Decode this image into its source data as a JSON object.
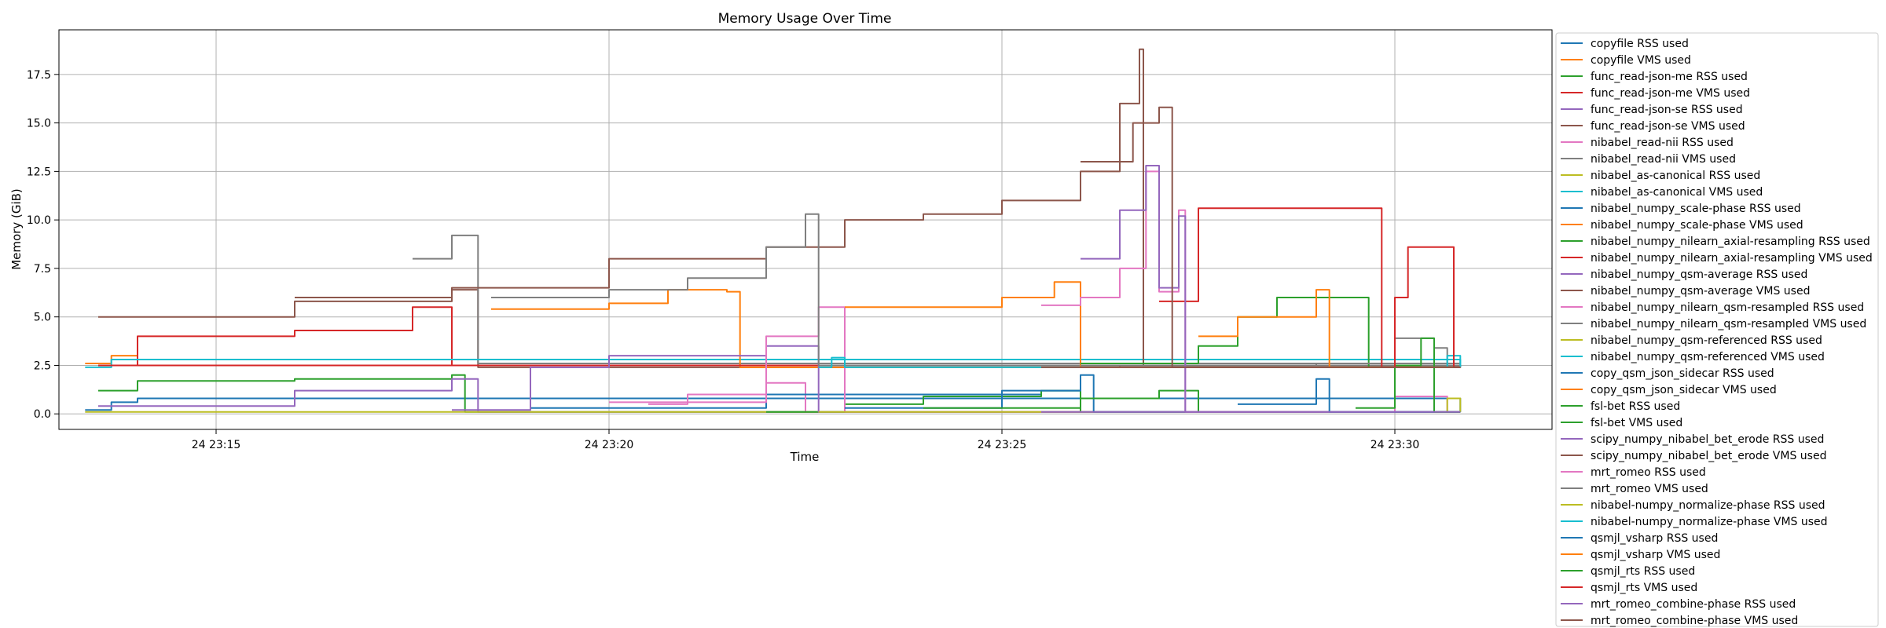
{
  "chart_data": {
    "type": "line",
    "title": "Memory Usage Over Time",
    "xlabel": "Time",
    "ylabel": "Memory (GiB)",
    "xlim": [
      "24 23:13:00",
      "24 23:32:00"
    ],
    "ylim": [
      -0.8,
      19.8
    ],
    "x_ticks": [
      "24 23:15",
      "24 23:20",
      "24 23:25",
      "24 23:30"
    ],
    "y_ticks": [
      "0.0",
      "2.5",
      "5.0",
      "7.5",
      "10.0",
      "12.5",
      "15.0",
      "17.5"
    ],
    "grid": true,
    "legend_position": "outside-right",
    "series": [
      {
        "name": "copyfile RSS used",
        "color": "#1f77b4",
        "points": [
          [
            "23:13:20",
            0.2
          ],
          [
            "23:13:40",
            0.6
          ],
          [
            "23:14:00",
            0.8
          ],
          [
            "23:30:50",
            0.1
          ]
        ]
      },
      {
        "name": "copyfile VMS used",
        "color": "#ff7f0e",
        "points": [
          [
            "23:13:20",
            2.6
          ],
          [
            "23:13:40",
            3.0
          ],
          [
            "23:14:00",
            2.5
          ],
          [
            "23:30:50",
            2.4
          ]
        ]
      },
      {
        "name": "func_read-json-me RSS used",
        "color": "#2ca02c",
        "points": [
          [
            "23:13:30",
            1.2
          ],
          [
            "23:14:00",
            1.7
          ],
          [
            "23:16:00",
            1.8
          ],
          [
            "23:18:00",
            2.0
          ],
          [
            "23:18:10",
            0.1
          ],
          [
            "23:30:50",
            0.1
          ]
        ]
      },
      {
        "name": "func_read-json-me VMS used",
        "color": "#d62728",
        "points": [
          [
            "23:13:30",
            2.5
          ],
          [
            "23:14:00",
            4.0
          ],
          [
            "23:16:00",
            4.3
          ],
          [
            "23:17:30",
            5.5
          ],
          [
            "23:18:00",
            2.5
          ],
          [
            "23:30:50",
            2.4
          ]
        ]
      },
      {
        "name": "func_read-json-se RSS used",
        "color": "#9467bd",
        "points": [
          [
            "23:13:30",
            0.4
          ],
          [
            "23:16:00",
            1.2
          ],
          [
            "23:18:00",
            1.8
          ],
          [
            "23:18:20",
            0.1
          ],
          [
            "23:30:50",
            0.1
          ]
        ]
      },
      {
        "name": "func_read-json-se VMS used",
        "color": "#8c564b",
        "points": [
          [
            "23:13:30",
            5.0
          ],
          [
            "23:16:00",
            5.8
          ],
          [
            "23:18:00",
            6.4
          ],
          [
            "23:18:20",
            2.4
          ],
          [
            "23:30:50",
            2.5
          ]
        ]
      },
      {
        "name": "nibabel_read-nii RSS used",
        "color": "#e377c2",
        "points": [
          [
            "23:20:30",
            0.5
          ],
          [
            "23:21:00",
            1.0
          ],
          [
            "23:22:00",
            1.6
          ],
          [
            "23:22:30",
            0.1
          ],
          [
            "23:30:50",
            0.1
          ]
        ]
      },
      {
        "name": "nibabel_read-nii VMS used",
        "color": "#7f7f7f",
        "points": [
          [
            "23:17:30",
            8.0
          ],
          [
            "23:18:00",
            9.2
          ],
          [
            "23:18:20",
            2.6
          ],
          [
            "23:30:50",
            2.6
          ]
        ]
      },
      {
        "name": "nibabel_as-canonical RSS used",
        "color": "#bcbd22",
        "points": [
          [
            "23:13:20",
            0.1
          ],
          [
            "23:30:50",
            0.1
          ]
        ]
      },
      {
        "name": "nibabel_as-canonical VMS used",
        "color": "#17becf",
        "points": [
          [
            "23:13:20",
            2.4
          ],
          [
            "23:13:40",
            2.8
          ],
          [
            "23:30:50",
            2.4
          ]
        ]
      },
      {
        "name": "nibabel_numpy_scale-phase RSS used",
        "color": "#1f77b4",
        "points": [
          [
            "23:19:00",
            0.3
          ],
          [
            "23:22:00",
            1.0
          ],
          [
            "23:25:30",
            1.2
          ],
          [
            "23:26:00",
            0.1
          ],
          [
            "23:30:50",
            0.1
          ]
        ]
      },
      {
        "name": "nibabel_numpy_scale-phase VMS used",
        "color": "#ff7f0e",
        "points": [
          [
            "23:18:30",
            5.4
          ],
          [
            "23:20:00",
            5.7
          ],
          [
            "23:20:45",
            6.4
          ],
          [
            "23:21:30",
            6.3
          ],
          [
            "23:21:40",
            2.4
          ],
          [
            "23:30:50",
            2.4
          ]
        ]
      },
      {
        "name": "nibabel_numpy_nilearn_axial-resampling RSS used",
        "color": "#2ca02c",
        "points": [
          [
            "23:22:00",
            0.1
          ],
          [
            "23:23:00",
            0.5
          ],
          [
            "23:24:00",
            0.9
          ],
          [
            "23:25:30",
            1.2
          ],
          [
            "23:26:00",
            0.1
          ],
          [
            "23:30:50",
            0.1
          ]
        ]
      },
      {
        "name": "nibabel_numpy_nilearn_axial-resampling VMS used",
        "color": "#d62728",
        "points": [
          [
            "23:13:30",
            2.5
          ],
          [
            "23:20:00",
            2.5
          ],
          [
            "23:26:30",
            2.4
          ],
          [
            "23:30:50",
            2.4
          ]
        ]
      },
      {
        "name": "nibabel_numpy_qsm-average RSS used",
        "color": "#9467bd",
        "points": [
          [
            "23:18:00",
            0.2
          ],
          [
            "23:19:00",
            2.4
          ],
          [
            "23:20:00",
            3.0
          ],
          [
            "23:22:00",
            3.5
          ],
          [
            "23:22:40",
            0.1
          ],
          [
            "23:30:50",
            0.1
          ]
        ]
      },
      {
        "name": "nibabel_numpy_qsm-average VMS used",
        "color": "#8c564b",
        "points": [
          [
            "23:16:00",
            6.0
          ],
          [
            "23:18:00",
            6.5
          ],
          [
            "23:20:00",
            8.0
          ],
          [
            "23:22:00",
            8.6
          ],
          [
            "23:23:00",
            10.0
          ],
          [
            "23:24:00",
            10.3
          ],
          [
            "23:25:00",
            11.0
          ],
          [
            "23:26:00",
            12.5
          ],
          [
            "23:26:30",
            16.0
          ],
          [
            "23:26:45",
            18.8
          ],
          [
            "23:26:48",
            2.5
          ],
          [
            "23:30:50",
            2.5
          ]
        ]
      },
      {
        "name": "nibabel_numpy_nilearn_qsm-resampled RSS used",
        "color": "#e377c2",
        "points": [
          [
            "23:20:00",
            0.6
          ],
          [
            "23:22:00",
            4.0
          ],
          [
            "23:22:40",
            5.5
          ],
          [
            "23:23:00",
            0.1
          ],
          [
            "23:30:50",
            0.1
          ]
        ]
      },
      {
        "name": "nibabel_numpy_nilearn_qsm-resampled VMS used",
        "color": "#7f7f7f",
        "points": [
          [
            "23:18:30",
            6.0
          ],
          [
            "23:20:00",
            6.4
          ],
          [
            "23:21:00",
            7.0
          ],
          [
            "23:22:00",
            8.6
          ],
          [
            "23:22:30",
            10.3
          ],
          [
            "23:22:40",
            2.5
          ],
          [
            "23:30:50",
            2.5
          ]
        ]
      },
      {
        "name": "nibabel_numpy_qsm-referenced RSS used",
        "color": "#bcbd22",
        "points": [
          [
            "23:22:40",
            0.1
          ],
          [
            "23:30:50",
            0.1
          ]
        ]
      },
      {
        "name": "nibabel_numpy_qsm-referenced VMS used",
        "color": "#17becf",
        "points": [
          [
            "23:22:40",
            2.4
          ],
          [
            "23:22:50",
            2.9
          ],
          [
            "23:23:00",
            2.4
          ],
          [
            "23:30:50",
            2.4
          ]
        ]
      },
      {
        "name": "copy_qsm_json_sidecar RSS used",
        "color": "#1f77b4",
        "points": [
          [
            "23:23:00",
            0.3
          ],
          [
            "23:25:00",
            1.2
          ],
          [
            "23:26:00",
            2.0
          ],
          [
            "23:26:10",
            0.1
          ],
          [
            "23:30:50",
            0.1
          ]
        ]
      },
      {
        "name": "copy_qsm_json_sidecar VMS used",
        "color": "#ff7f0e",
        "points": [
          [
            "23:23:00",
            5.5
          ],
          [
            "23:25:00",
            6.0
          ],
          [
            "23:25:40",
            6.8
          ],
          [
            "23:26:00",
            2.4
          ],
          [
            "23:30:50",
            2.4
          ]
        ]
      },
      {
        "name": "fsl-bet RSS used",
        "color": "#2ca02c",
        "points": [
          [
            "23:24:00",
            0.3
          ],
          [
            "23:26:00",
            0.8
          ],
          [
            "23:27:00",
            1.2
          ],
          [
            "23:27:30",
            0.1
          ],
          [
            "23:30:50",
            0.1
          ]
        ]
      },
      {
        "name": "fsl-bet VMS used",
        "color": "#2ca02c",
        "points": [
          [
            "23:26:00",
            2.6
          ],
          [
            "23:27:30",
            3.5
          ],
          [
            "23:28:00",
            5.0
          ],
          [
            "23:28:30",
            6.0
          ],
          [
            "23:29:30",
            6.0
          ],
          [
            "23:29:40",
            2.4
          ],
          [
            "23:30:50",
            2.4
          ]
        ]
      },
      {
        "name": "scipy_numpy_nibabel_bet_erode RSS used",
        "color": "#9467bd",
        "points": [
          [
            "23:25:30",
            0.1
          ],
          [
            "23:30:50",
            0.1
          ]
        ]
      },
      {
        "name": "scipy_numpy_nibabel_bet_erode VMS used",
        "color": "#8c564b",
        "points": [
          [
            "23:25:30",
            2.4
          ],
          [
            "23:30:50",
            2.4
          ]
        ]
      },
      {
        "name": "mrt_romeo RSS used",
        "color": "#e377c2",
        "points": [
          [
            "23:25:30",
            5.6
          ],
          [
            "23:26:00",
            6.0
          ],
          [
            "23:26:30",
            7.5
          ],
          [
            "23:26:50",
            12.5
          ],
          [
            "23:27:00",
            6.3
          ],
          [
            "23:27:15",
            10.5
          ],
          [
            "23:27:20",
            0.1
          ],
          [
            "23:29:40",
            0.1
          ],
          [
            "23:30:00",
            0.9
          ],
          [
            "23:30:30",
            0.9
          ],
          [
            "23:30:40",
            0.1
          ],
          [
            "23:30:50",
            0.1
          ]
        ]
      },
      {
        "name": "mrt_romeo VMS used",
        "color": "#7f7f7f",
        "points": [
          [
            "23:26:00",
            2.5
          ],
          [
            "23:29:00",
            2.6
          ],
          [
            "23:30:00",
            3.9
          ],
          [
            "23:30:30",
            3.4
          ],
          [
            "23:30:40",
            2.4
          ],
          [
            "23:30:50",
            2.4
          ]
        ]
      },
      {
        "name": "nibabel-numpy_normalize-phase RSS used",
        "color": "#bcbd22",
        "points": [
          [
            "23:30:30",
            0.1
          ],
          [
            "23:30:40",
            0.8
          ],
          [
            "23:30:50",
            0.1
          ]
        ]
      },
      {
        "name": "nibabel-numpy_normalize-phase VMS used",
        "color": "#17becf",
        "points": [
          [
            "23:30:30",
            2.4
          ],
          [
            "23:30:40",
            3.0
          ],
          [
            "23:30:50",
            2.4
          ]
        ]
      },
      {
        "name": "qsmjl_vsharp RSS used",
        "color": "#1f77b4",
        "points": [
          [
            "23:28:00",
            0.5
          ],
          [
            "23:29:00",
            1.8
          ],
          [
            "23:29:10",
            0.1
          ],
          [
            "23:30:50",
            0.1
          ]
        ]
      },
      {
        "name": "qsmjl_vsharp VMS used",
        "color": "#ff7f0e",
        "points": [
          [
            "23:27:30",
            4.0
          ],
          [
            "23:28:00",
            5.0
          ],
          [
            "23:29:00",
            6.4
          ],
          [
            "23:29:10",
            2.4
          ],
          [
            "23:30:50",
            2.4
          ]
        ]
      },
      {
        "name": "qsmjl_rts RSS used",
        "color": "#2ca02c",
        "points": [
          [
            "23:29:30",
            0.3
          ],
          [
            "23:30:00",
            2.5
          ],
          [
            "23:30:20",
            3.9
          ],
          [
            "23:30:30",
            0.1
          ],
          [
            "23:30:50",
            0.1
          ]
        ]
      },
      {
        "name": "qsmjl_rts VMS used",
        "color": "#d62728",
        "points": [
          [
            "23:27:00",
            5.8
          ],
          [
            "23:27:30",
            10.6
          ],
          [
            "23:29:40",
            10.6
          ],
          [
            "23:29:50",
            2.4
          ],
          [
            "23:30:00",
            6.0
          ],
          [
            "23:30:10",
            8.6
          ],
          [
            "23:30:40",
            8.6
          ],
          [
            "23:30:45",
            2.4
          ],
          [
            "23:30:50",
            2.4
          ]
        ]
      },
      {
        "name": "mrt_romeo_combine-phase RSS used",
        "color": "#9467bd",
        "points": [
          [
            "23:26:00",
            8.0
          ],
          [
            "23:26:30",
            10.5
          ],
          [
            "23:26:50",
            12.8
          ],
          [
            "23:27:00",
            6.5
          ],
          [
            "23:27:15",
            10.2
          ],
          [
            "23:27:20",
            0.1
          ],
          [
            "23:30:50",
            0.1
          ]
        ]
      },
      {
        "name": "mrt_romeo_combine-phase VMS used",
        "color": "#8c564b",
        "points": [
          [
            "23:26:00",
            13.0
          ],
          [
            "23:26:40",
            15.0
          ],
          [
            "23:27:00",
            15.8
          ],
          [
            "23:27:10",
            2.4
          ],
          [
            "23:30:50",
            2.4
          ]
        ]
      }
    ]
  }
}
